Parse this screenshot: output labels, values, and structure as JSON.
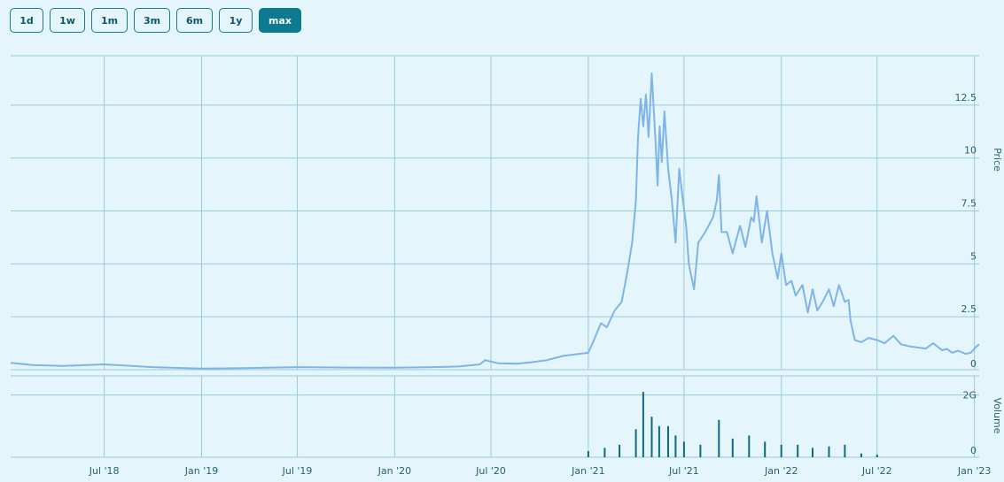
{
  "range_buttons": [
    {
      "label": "1d",
      "active": false
    },
    {
      "label": "1w",
      "active": false
    },
    {
      "label": "1m",
      "active": false
    },
    {
      "label": "3m",
      "active": false
    },
    {
      "label": "6m",
      "active": false
    },
    {
      "label": "1y",
      "active": false
    },
    {
      "label": "max",
      "active": true
    }
  ],
  "colors": {
    "background": "#e4f6fc",
    "price_line": "#7fb4e8",
    "volume_bars": "#0d6a7c",
    "grid": "#9cc9d6",
    "active_button": "#0d7a8f"
  },
  "chart_data": [
    {
      "type": "line",
      "ylabel": "Price",
      "ylim": [
        0,
        14.5
      ],
      "y_ticks": [
        0,
        2.5,
        5,
        7.5,
        10,
        12.5
      ],
      "y_tick_labels": [
        "0",
        "2.5",
        "5",
        "7.5",
        "10",
        "12.5"
      ],
      "x_ticks": [
        "2018-07-01",
        "2019-01-01",
        "2019-07-01",
        "2020-01-01",
        "2020-07-01",
        "2021-01-01",
        "2021-07-01",
        "2022-01-01",
        "2022-07-01",
        "2023-01-01"
      ],
      "x_tick_labels": [
        "Jul '18",
        "Jan '19",
        "Jul '19",
        "Jan '20",
        "Jul '20",
        "Jan '21",
        "Jul '21",
        "Jan '22",
        "Jul '22",
        "Jan '23"
      ],
      "x_range": [
        "2018-01-05",
        "2023-01-10"
      ],
      "grid": true,
      "series": [
        {
          "x": [
            "2018-01-05",
            "2018-02-15",
            "2018-04-15",
            "2018-07-01",
            "2018-10-01",
            "2019-01-01",
            "2019-04-01",
            "2019-07-01",
            "2019-10-01",
            "2020-01-01",
            "2020-03-15",
            "2020-05-01",
            "2020-06-10",
            "2020-06-20",
            "2020-07-15",
            "2020-08-20",
            "2020-09-15",
            "2020-10-15",
            "2020-11-15",
            "2020-12-15",
            "2021-01-01",
            "2021-01-10",
            "2021-01-25",
            "2021-02-05",
            "2021-02-20",
            "2021-03-05",
            "2021-03-15",
            "2021-03-25",
            "2021-04-01",
            "2021-04-05",
            "2021-04-10",
            "2021-04-15",
            "2021-04-20",
            "2021-04-25",
            "2021-05-01",
            "2021-05-08",
            "2021-05-12",
            "2021-05-16",
            "2021-05-20",
            "2021-05-25",
            "2021-06-01",
            "2021-06-08",
            "2021-06-15",
            "2021-06-22",
            "2021-06-28",
            "2021-07-05",
            "2021-07-10",
            "2021-07-20",
            "2021-07-28",
            "2021-08-10",
            "2021-08-25",
            "2021-09-01",
            "2021-09-05",
            "2021-09-10",
            "2021-09-20",
            "2021-10-01",
            "2021-10-15",
            "2021-10-25",
            "2021-11-05",
            "2021-11-10",
            "2021-11-15",
            "2021-11-25",
            "2021-12-05",
            "2021-12-15",
            "2021-12-25",
            "2022-01-01",
            "2022-01-10",
            "2022-01-20",
            "2022-01-28",
            "2022-02-10",
            "2022-02-20",
            "2022-03-01",
            "2022-03-10",
            "2022-03-20",
            "2022-04-01",
            "2022-04-10",
            "2022-04-20",
            "2022-05-01",
            "2022-05-08",
            "2022-05-12",
            "2022-05-20",
            "2022-06-01",
            "2022-06-15",
            "2022-07-01",
            "2022-07-15",
            "2022-08-01",
            "2022-08-15",
            "2022-09-01",
            "2022-09-15",
            "2022-10-01",
            "2022-10-15",
            "2022-11-01",
            "2022-11-10",
            "2022-11-20",
            "2022-12-01",
            "2022-12-15",
            "2022-12-25",
            "2023-01-05",
            "2023-01-10"
          ],
          "y": [
            0.32,
            0.22,
            0.18,
            0.25,
            0.12,
            0.05,
            0.08,
            0.12,
            0.1,
            0.09,
            0.12,
            0.15,
            0.25,
            0.45,
            0.3,
            0.28,
            0.35,
            0.45,
            0.65,
            0.75,
            0.8,
            1.3,
            2.2,
            2.0,
            2.8,
            3.2,
            4.5,
            6.0,
            8.0,
            11.0,
            12.8,
            11.5,
            13.0,
            11.0,
            14.0,
            10.8,
            8.7,
            11.5,
            9.8,
            12.2,
            9.5,
            8.0,
            6.0,
            9.5,
            8.2,
            6.8,
            5.0,
            3.8,
            6.0,
            6.5,
            7.2,
            8.0,
            9.2,
            6.5,
            6.5,
            5.5,
            6.8,
            5.8,
            7.2,
            7.0,
            8.2,
            6.0,
            7.5,
            5.5,
            4.3,
            5.5,
            4.0,
            4.2,
            3.5,
            4.0,
            2.7,
            3.8,
            2.8,
            3.2,
            3.8,
            3.0,
            4.0,
            3.2,
            3.3,
            2.3,
            1.4,
            1.3,
            1.5,
            1.4,
            1.25,
            1.6,
            1.2,
            1.1,
            1.05,
            1.0,
            1.25,
            0.92,
            0.98,
            0.8,
            0.9,
            0.75,
            0.8,
            1.1,
            1.2
          ]
        }
      ]
    },
    {
      "type": "bar",
      "ylabel": "Volume",
      "ylim": [
        0,
        2500000000
      ],
      "y_ticks": [
        0,
        2000000000
      ],
      "y_tick_labels": [
        "0",
        "2G"
      ],
      "grid": true,
      "series": [
        {
          "x": [
            "2021-01-01",
            "2021-02-01",
            "2021-03-01",
            "2021-04-01",
            "2021-04-15",
            "2021-05-01",
            "2021-05-15",
            "2021-06-01",
            "2021-06-15",
            "2021-07-01",
            "2021-08-01",
            "2021-09-05",
            "2021-10-01",
            "2021-11-01",
            "2021-12-01",
            "2022-01-01",
            "2022-02-01",
            "2022-03-01",
            "2022-04-01",
            "2022-05-01",
            "2022-06-01",
            "2022-07-01"
          ],
          "values": [
            200000000,
            300000000,
            400000000,
            900000000,
            2100000000,
            1300000000,
            1000000000,
            1000000000,
            700000000,
            500000000,
            400000000,
            1200000000,
            600000000,
            700000000,
            500000000,
            400000000,
            400000000,
            300000000,
            350000000,
            400000000,
            120000000,
            80000000
          ]
        }
      ]
    }
  ]
}
